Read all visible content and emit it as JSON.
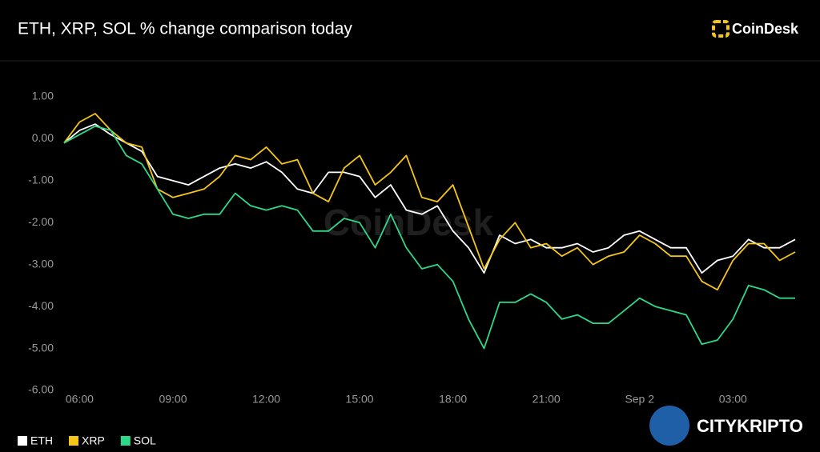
{
  "brand": "CoinDesk",
  "watermark": "CITYKRIPTO",
  "chart_data": {
    "type": "line",
    "title": "ETH, XRP, SOL % change comparison today",
    "categories": [
      null,
      "06:00",
      null,
      null,
      null,
      null,
      null,
      "09:00",
      null,
      null,
      null,
      null,
      null,
      "12:00",
      null,
      null,
      null,
      null,
      null,
      "15:00",
      null,
      null,
      null,
      null,
      null,
      "18:00",
      null,
      null,
      null,
      null,
      null,
      "21:00",
      null,
      null,
      null,
      null,
      null,
      "Sep 2",
      null,
      null,
      null,
      null,
      null,
      "03:00",
      null,
      null,
      null,
      null
    ],
    "ylim": [
      -6,
      1
    ],
    "yticks": [
      {
        "value": 1,
        "label": "1.00"
      },
      {
        "value": 0,
        "label": "0.00"
      },
      {
        "value": -1,
        "label": "-1.00"
      },
      {
        "value": -2,
        "label": "-2.00"
      },
      {
        "value": -3,
        "label": "-3.00"
      },
      {
        "value": -4,
        "label": "-4.00"
      },
      {
        "value": -5,
        "label": "-5.00"
      },
      {
        "value": -6,
        "label": "-6.00"
      }
    ],
    "grid": false,
    "legend": "bottom-left",
    "series": [
      {
        "name": "ETH",
        "color": "#ffffff",
        "values": [
          -0.1,
          0.2,
          0.35,
          0.1,
          -0.1,
          -0.3,
          -0.9,
          -1.0,
          -1.1,
          -0.9,
          -0.7,
          -0.6,
          -0.7,
          -0.55,
          -0.8,
          -1.2,
          -1.3,
          -0.8,
          -0.8,
          -0.9,
          -1.4,
          -1.1,
          -1.7,
          -1.8,
          -1.6,
          -2.2,
          -2.6,
          -3.2,
          -2.3,
          -2.5,
          -2.4,
          -2.6,
          -2.6,
          -2.5,
          -2.7,
          -2.6,
          -2.3,
          -2.2,
          -2.4,
          -2.6,
          -2.6,
          -3.2,
          -2.9,
          -2.8,
          -2.4,
          -2.6,
          -2.6,
          -2.4
        ]
      },
      {
        "name": "XRP",
        "color": "#f5c518",
        "values": [
          -0.1,
          0.4,
          0.6,
          0.2,
          -0.1,
          -0.2,
          -1.2,
          -1.4,
          -1.3,
          -1.2,
          -0.9,
          -0.4,
          -0.5,
          -0.2,
          -0.6,
          -0.5,
          -1.3,
          -1.5,
          -0.7,
          -0.4,
          -1.1,
          -0.8,
          -0.4,
          -1.4,
          -1.5,
          -1.1,
          -2.1,
          -3.1,
          -2.4,
          -2.0,
          -2.6,
          -2.5,
          -2.8,
          -2.6,
          -3.0,
          -2.8,
          -2.7,
          -2.3,
          -2.5,
          -2.8,
          -2.8,
          -3.4,
          -3.6,
          -2.9,
          -2.5,
          -2.5,
          -2.9,
          -2.7
        ]
      },
      {
        "name": "SOL",
        "color": "#2ed889",
        "values": [
          -0.1,
          0.1,
          0.3,
          0.2,
          -0.4,
          -0.6,
          -1.2,
          -1.8,
          -1.9,
          -1.8,
          -1.8,
          -1.3,
          -1.6,
          -1.7,
          -1.6,
          -1.7,
          -2.2,
          -2.2,
          -1.9,
          -2.0,
          -2.6,
          -1.8,
          -2.6,
          -3.1,
          -3.0,
          -3.4,
          -4.3,
          -5.0,
          -3.9,
          -3.9,
          -3.7,
          -3.9,
          -4.3,
          -4.2,
          -4.4,
          -4.4,
          -4.1,
          -3.8,
          -4.0,
          -4.1,
          -4.2,
          -4.9,
          -4.8,
          -4.3,
          -3.5,
          -3.6,
          -3.8,
          -3.8
        ]
      }
    ]
  }
}
